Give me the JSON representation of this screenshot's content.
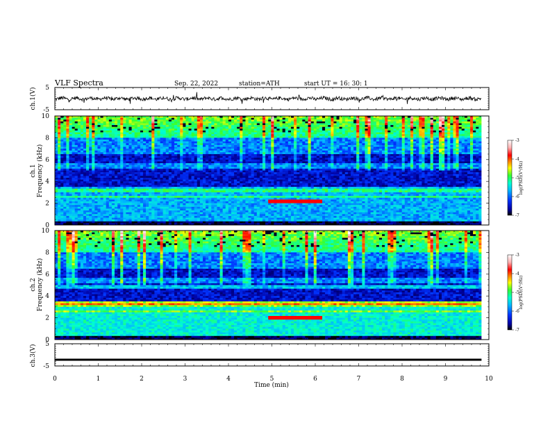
{
  "header": {
    "title": "VLF  Spectra",
    "date": "Sep. 22, 2022",
    "station": "station=ATH",
    "start": "start  UT  =   16: 30: 1"
  },
  "chart_data": [
    {
      "id": "ch1-waveform",
      "type": "line",
      "ylabel": "ch.1(V)",
      "ylim": [
        -5,
        5
      ],
      "yticks": [
        "5",
        "-5"
      ],
      "xlim": [
        0,
        10
      ],
      "x_extent": [
        0,
        9.83
      ],
      "level": 0
    },
    {
      "id": "ch1-spectrogram",
      "type": "heatmap",
      "ylabel_top": "ch.1",
      "ylabel": "Frequency  (kHz)",
      "ylim": [
        0,
        10
      ],
      "yticks": [
        "0",
        "2",
        "4",
        "6",
        "8",
        "10"
      ],
      "xlim": [
        0,
        10
      ],
      "x_extent": [
        0,
        9.83
      ],
      "colorbar": {
        "label": "log(PSD)(V²/Hz)",
        "range": [
          -7,
          -3
        ],
        "ticks": [
          "-3",
          "-4",
          "-5",
          "-6",
          "-7"
        ]
      },
      "features": {
        "line_2_2kHz_interval_min": [
          4.85,
          6.1
        ]
      }
    },
    {
      "id": "ch2-spectrogram",
      "type": "heatmap",
      "ylabel_top": "ch.2",
      "ylabel": "Frequency  (kHz)",
      "ylim": [
        0,
        10
      ],
      "yticks": [
        "0",
        "2",
        "4",
        "6",
        "8",
        "10"
      ],
      "xlim": [
        0,
        10
      ],
      "x_extent": [
        0,
        9.83
      ],
      "colorbar": {
        "label": "log(PSD)(V²/Hz)",
        "range": [
          -7,
          -3
        ],
        "ticks": [
          "-3",
          "-4",
          "-5",
          "-6",
          "-7"
        ]
      },
      "features": {
        "line_2kHz_interval_min": [
          4.85,
          6.1
        ]
      }
    },
    {
      "id": "ch3-waveform",
      "type": "line",
      "ylabel": "ch.3(V)",
      "ylim": [
        -5,
        5
      ],
      "yticks": [
        "5",
        "-5"
      ],
      "xlim": [
        0,
        10
      ],
      "x_extent": [
        0,
        9.83
      ],
      "level": -2.2,
      "xlabel": "Time  (min)",
      "xticks": [
        "0",
        "1",
        "2",
        "3",
        "4",
        "5",
        "6",
        "7",
        "8",
        "9",
        "10"
      ]
    }
  ],
  "colors": {
    "background": "#ffffff",
    "axes": "#000000",
    "colormap": [
      "#000000",
      "#0000a0",
      "#0033ff",
      "#00b7ff",
      "#00ffd0",
      "#33ff33",
      "#ffff00",
      "#ff7f00",
      "#ff0000",
      "#ffb0b0",
      "#ffffff"
    ]
  }
}
